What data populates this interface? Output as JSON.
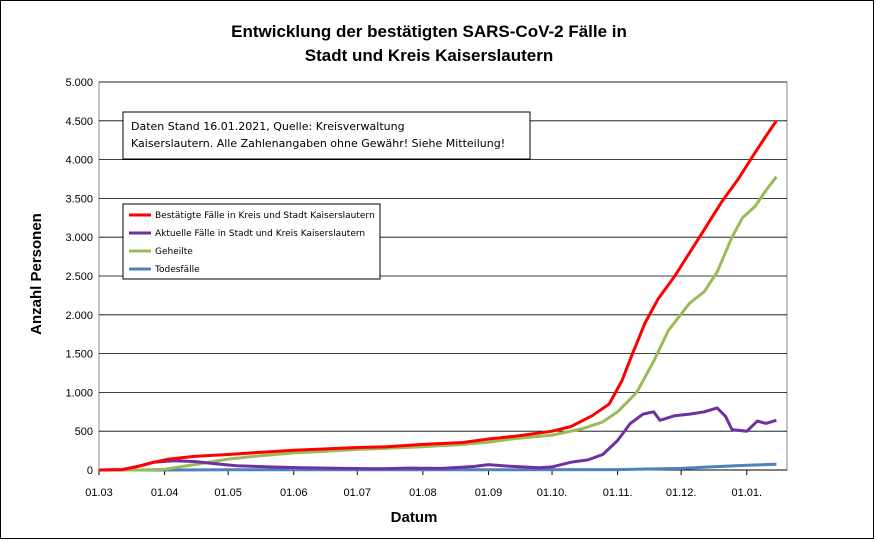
{
  "chart_data": {
    "type": "line",
    "title_lines": [
      "Entwicklung der bestätigten SARS-CoV-2 Fälle in",
      "Stadt und Kreis Kaiserslautern"
    ],
    "xlabel": "Datum",
    "ylabel": "Anzahl Personen",
    "ylim": [
      0,
      5000
    ],
    "y_ticks": [
      0,
      500,
      1000,
      1500,
      2000,
      2500,
      3000,
      3500,
      4000,
      4500,
      5000
    ],
    "y_tick_labels": [
      "0",
      "500",
      "1.000",
      "1.500",
      "2.000",
      "2.500",
      "3.000",
      "3.500",
      "4.000",
      "4.500",
      "5.000"
    ],
    "x_ticks": [
      "2020-03-01",
      "2020-04-01",
      "2020-05-01",
      "2020-06-01",
      "2020-07-01",
      "2020-08-01",
      "2020-09-01",
      "2020-10-01",
      "2020-11-01",
      "2020-12-01",
      "2021-01-01"
    ],
    "x_tick_labels": [
      "01.03",
      "01.04",
      "01.05",
      "01.06",
      "01.07",
      "01.08",
      "01.09",
      "01.10.",
      "01.11.",
      "01.12.",
      "01.01."
    ],
    "xlim": [
      "2020-03-01",
      "2021-01-20"
    ],
    "grid": "horizontal",
    "legend_position": "left",
    "annotation": {
      "line1": "Daten Stand 16.01.2021, Quelle: Kreisverwaltung",
      "line2": "Kaiserslautern. Alle Zahlenangaben ohne Gewähr! Siehe Mitteilung!"
    },
    "series": [
      {
        "name": "Bestätigte Fälle in Kreis und Stadt Kaiserslautern",
        "color": "#ff0000",
        "points": [
          [
            "2020-03-01",
            0
          ],
          [
            "2020-03-12",
            5
          ],
          [
            "2020-03-20",
            50
          ],
          [
            "2020-03-27",
            100
          ],
          [
            "2020-04-03",
            140
          ],
          [
            "2020-04-15",
            175
          ],
          [
            "2020-05-01",
            200
          ],
          [
            "2020-05-15",
            225
          ],
          [
            "2020-06-01",
            255
          ],
          [
            "2020-06-15",
            270
          ],
          [
            "2020-07-01",
            290
          ],
          [
            "2020-07-15",
            300
          ],
          [
            "2020-08-01",
            330
          ],
          [
            "2020-08-20",
            355
          ],
          [
            "2020-09-01",
            400
          ],
          [
            "2020-09-15",
            440
          ],
          [
            "2020-10-01",
            500
          ],
          [
            "2020-10-10",
            560
          ],
          [
            "2020-10-20",
            700
          ],
          [
            "2020-10-28",
            850
          ],
          [
            "2020-11-03",
            1150
          ],
          [
            "2020-11-08",
            1500
          ],
          [
            "2020-11-14",
            1900
          ],
          [
            "2020-11-20",
            2200
          ],
          [
            "2020-11-28",
            2500
          ],
          [
            "2020-12-05",
            2800
          ],
          [
            "2020-12-12",
            3100
          ],
          [
            "2020-12-20",
            3450
          ],
          [
            "2020-12-28",
            3750
          ],
          [
            "2021-01-04",
            4050
          ],
          [
            "2021-01-10",
            4300
          ],
          [
            "2021-01-15",
            4500
          ]
        ]
      },
      {
        "name": "Aktuelle Fälle in Stadt und Kreis Kaiserslautern",
        "color": "#7030a0",
        "points": [
          [
            "2020-03-01",
            0
          ],
          [
            "2020-03-12",
            5
          ],
          [
            "2020-03-20",
            50
          ],
          [
            "2020-03-27",
            100
          ],
          [
            "2020-04-05",
            120
          ],
          [
            "2020-04-15",
            110
          ],
          [
            "2020-04-25",
            80
          ],
          [
            "2020-05-05",
            55
          ],
          [
            "2020-05-20",
            40
          ],
          [
            "2020-06-05",
            30
          ],
          [
            "2020-06-25",
            20
          ],
          [
            "2020-07-10",
            15
          ],
          [
            "2020-07-25",
            25
          ],
          [
            "2020-08-10",
            20
          ],
          [
            "2020-08-25",
            45
          ],
          [
            "2020-09-01",
            70
          ],
          [
            "2020-09-10",
            50
          ],
          [
            "2020-09-25",
            30
          ],
          [
            "2020-10-01",
            40
          ],
          [
            "2020-10-10",
            100
          ],
          [
            "2020-10-18",
            130
          ],
          [
            "2020-10-25",
            200
          ],
          [
            "2020-11-01",
            380
          ],
          [
            "2020-11-07",
            600
          ],
          [
            "2020-11-13",
            720
          ],
          [
            "2020-11-18",
            750
          ],
          [
            "2020-11-21",
            640
          ],
          [
            "2020-11-28",
            700
          ],
          [
            "2020-12-05",
            720
          ],
          [
            "2020-12-12",
            750
          ],
          [
            "2020-12-18",
            800
          ],
          [
            "2020-12-22",
            690
          ],
          [
            "2020-12-25",
            520
          ],
          [
            "2021-01-01",
            500
          ],
          [
            "2021-01-06",
            630
          ],
          [
            "2021-01-10",
            600
          ],
          [
            "2021-01-15",
            640
          ]
        ]
      },
      {
        "name": "Geheilte",
        "color": "#9bbb59",
        "points": [
          [
            "2020-03-01",
            0
          ],
          [
            "2020-03-20",
            0
          ],
          [
            "2020-04-01",
            10
          ],
          [
            "2020-04-15",
            70
          ],
          [
            "2020-05-01",
            140
          ],
          [
            "2020-05-15",
            180
          ],
          [
            "2020-06-01",
            220
          ],
          [
            "2020-06-15",
            240
          ],
          [
            "2020-07-01",
            265
          ],
          [
            "2020-07-15",
            280
          ],
          [
            "2020-08-01",
            300
          ],
          [
            "2020-08-20",
            330
          ],
          [
            "2020-09-01",
            360
          ],
          [
            "2020-09-15",
            410
          ],
          [
            "2020-10-01",
            450
          ],
          [
            "2020-10-15",
            530
          ],
          [
            "2020-10-25",
            620
          ],
          [
            "2020-11-01",
            750
          ],
          [
            "2020-11-10",
            1000
          ],
          [
            "2020-11-18",
            1400
          ],
          [
            "2020-11-25",
            1800
          ],
          [
            "2020-12-05",
            2150
          ],
          [
            "2020-12-12",
            2300
          ],
          [
            "2020-12-18",
            2550
          ],
          [
            "2020-12-25",
            3000
          ],
          [
            "2020-12-30",
            3250
          ],
          [
            "2021-01-05",
            3400
          ],
          [
            "2021-01-10",
            3600
          ],
          [
            "2021-01-15",
            3780
          ]
        ]
      },
      {
        "name": "Todesfälle",
        "color": "#4f81bd",
        "points": [
          [
            "2020-03-01",
            0
          ],
          [
            "2020-04-01",
            0
          ],
          [
            "2020-05-01",
            2
          ],
          [
            "2020-08-01",
            2
          ],
          [
            "2020-11-01",
            5
          ],
          [
            "2020-12-01",
            20
          ],
          [
            "2020-12-15",
            40
          ],
          [
            "2021-01-01",
            60
          ],
          [
            "2021-01-15",
            75
          ]
        ]
      }
    ]
  }
}
